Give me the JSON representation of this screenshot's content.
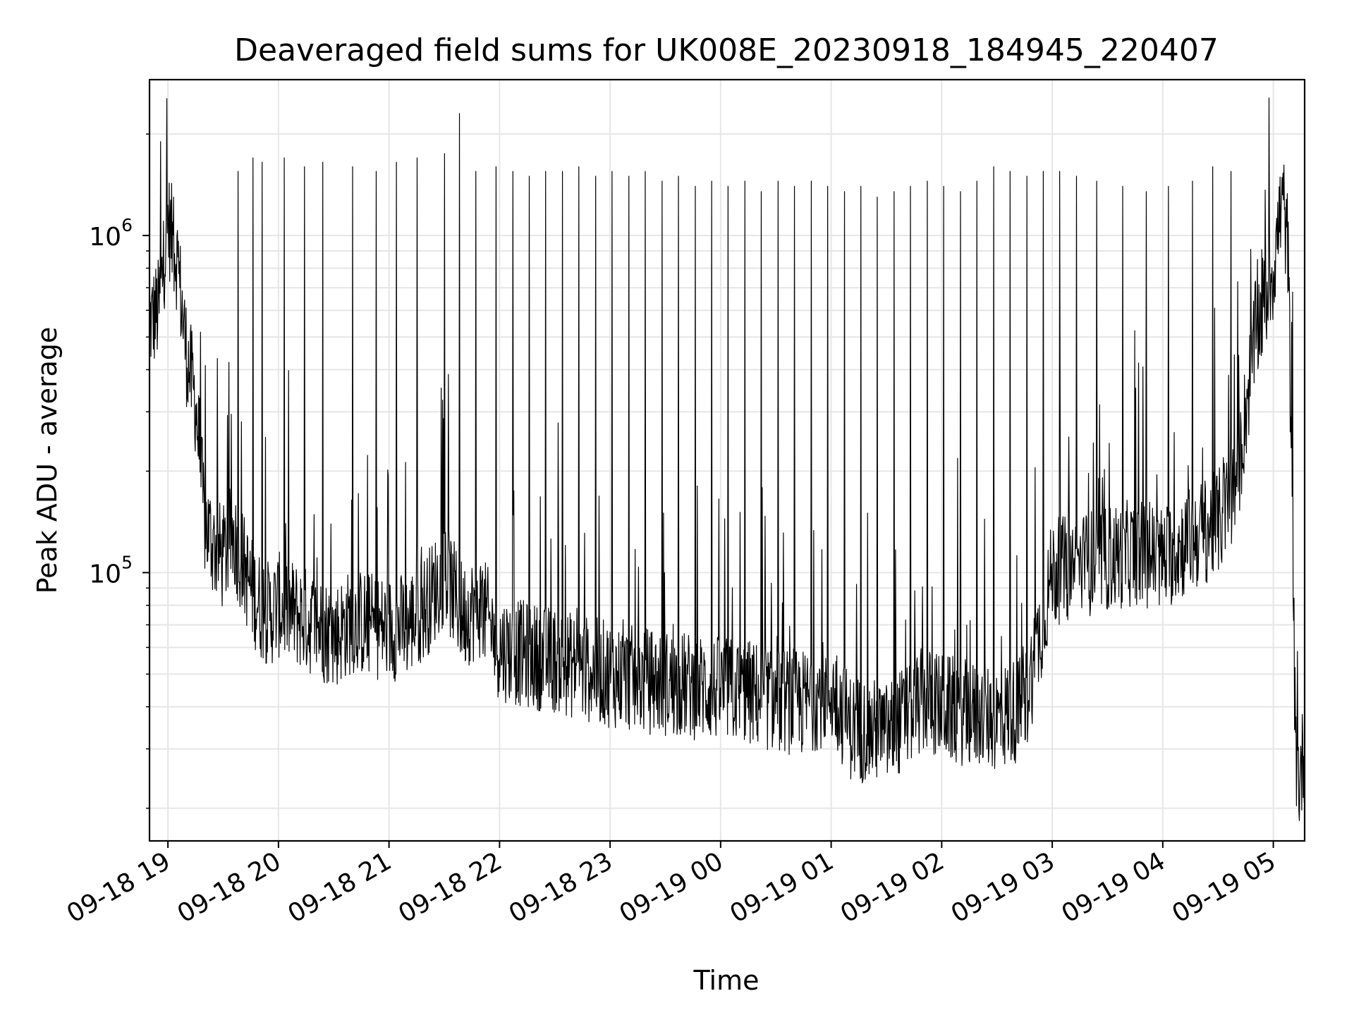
{
  "chart_data": {
    "type": "line",
    "title": "Deaveraged field sums for UK008E_20230918_184945_220407",
    "xlabel": "Time",
    "ylabel": "Peak ADU - average",
    "yscale": "log",
    "xlim": [
      "2023-09-18 18:50",
      "2023-09-19 05:17"
    ],
    "ylim": [
      16000,
      2900000
    ],
    "grid": true,
    "legend": "none",
    "line_color": "#000000",
    "grid_color": "#e6e6e6",
    "x_tick_labels": [
      "09-18 19",
      "09-18 20",
      "09-18 21",
      "09-18 22",
      "09-18 23",
      "09-19 00",
      "09-19 01",
      "09-19 02",
      "09-19 03",
      "09-19 04",
      "09-19 05"
    ],
    "y_tick_labels": [
      {
        "value": 100000,
        "base": "10",
        "exponent": "5"
      },
      {
        "value": 1000000,
        "base": "10",
        "exponent": "6"
      }
    ],
    "series": [
      {
        "x": [
          "2023-09-18 18:50",
          "2023-09-18 18:55",
          "2023-09-18 19:00",
          "2023-09-18 19:05",
          "2023-09-18 19:10",
          "2023-09-18 19:15",
          "2023-09-18 19:20",
          "2023-09-18 19:25",
          "2023-09-18 19:30",
          "2023-09-18 19:35",
          "2023-09-18 19:40",
          "2023-09-18 19:45",
          "2023-09-18 19:50",
          "2023-09-18 19:55",
          "2023-09-18 20:00",
          "2023-09-18 20:10",
          "2023-09-18 20:20",
          "2023-09-18 20:30",
          "2023-09-18 20:40",
          "2023-09-18 20:50",
          "2023-09-18 21:00",
          "2023-09-18 21:10",
          "2023-09-18 21:20",
          "2023-09-18 21:30",
          "2023-09-18 21:40",
          "2023-09-18 21:50",
          "2023-09-18 22:00",
          "2023-09-18 22:15",
          "2023-09-18 22:30",
          "2023-09-18 22:45",
          "2023-09-18 23:00",
          "2023-09-18 23:15",
          "2023-09-18 23:30",
          "2023-09-18 23:45",
          "2023-09-19 00:00",
          "2023-09-19 00:15",
          "2023-09-19 00:30",
          "2023-09-19 00:45",
          "2023-09-19 01:00",
          "2023-09-19 01:10",
          "2023-09-19 01:20",
          "2023-09-19 01:30",
          "2023-09-19 01:40",
          "2023-09-19 01:50",
          "2023-09-19 02:00",
          "2023-09-19 02:15",
          "2023-09-19 02:30",
          "2023-09-19 02:45",
          "2023-09-19 03:00",
          "2023-09-19 03:15",
          "2023-09-19 03:30",
          "2023-09-19 03:45",
          "2023-09-19 04:00",
          "2023-09-19 04:10",
          "2023-09-19 04:20",
          "2023-09-19 04:30",
          "2023-09-19 04:40",
          "2023-09-19 04:50",
          "2023-09-19 05:00",
          "2023-09-19 05:05",
          "2023-09-19 05:08",
          "2023-09-19 05:10",
          "2023-09-19 05:12",
          "2023-09-19 05:14",
          "2023-09-19 05:17"
        ],
        "y": [
          550000,
          600000,
          1100000,
          850000,
          450000,
          320000,
          140000,
          120000,
          110000,
          130000,
          110000,
          90000,
          80000,
          75000,
          80000,
          75000,
          70000,
          65000,
          72000,
          70000,
          68000,
          70000,
          80000,
          100000,
          75000,
          80000,
          60000,
          57000,
          55000,
          52000,
          50000,
          48000,
          47000,
          46000,
          45000,
          44000,
          42000,
          41000,
          45000,
          35000,
          34000,
          33000,
          37000,
          42000,
          40000,
          38000,
          37000,
          40000,
          100000,
          105000,
          110000,
          115000,
          110000,
          120000,
          130000,
          140000,
          180000,
          500000,
          800000,
          1300000,
          900000,
          200000,
          30000,
          24000,
          30000
        ],
        "spike_times": [
          "2023-09-18 18:56",
          "2023-09-18 19:03",
          "2023-09-18 19:38",
          "2023-09-18 19:46",
          "2023-09-18 19:51",
          "2023-09-18 20:03",
          "2023-09-18 20:14",
          "2023-09-18 20:24",
          "2023-09-18 20:40",
          "2023-09-18 20:53",
          "2023-09-18 21:04",
          "2023-09-18 21:15",
          "2023-09-18 21:30",
          "2023-09-18 21:38",
          "2023-09-18 21:47",
          "2023-09-18 21:58",
          "2023-09-18 22:07",
          "2023-09-18 22:16",
          "2023-09-18 22:25",
          "2023-09-18 22:34",
          "2023-09-18 22:43",
          "2023-09-18 22:52",
          "2023-09-18 23:01",
          "2023-09-18 23:10",
          "2023-09-18 23:19",
          "2023-09-18 23:28",
          "2023-09-18 23:37",
          "2023-09-18 23:46",
          "2023-09-18 23:55",
          "2023-09-19 00:04",
          "2023-09-19 00:13",
          "2023-09-19 00:22",
          "2023-09-19 00:31",
          "2023-09-19 00:40",
          "2023-09-19 00:49",
          "2023-09-19 00:58",
          "2023-09-19 01:07",
          "2023-09-19 01:16",
          "2023-09-19 01:25",
          "2023-09-19 01:34",
          "2023-09-19 01:43",
          "2023-09-19 01:52",
          "2023-09-19 02:01",
          "2023-09-19 02:10",
          "2023-09-19 02:19",
          "2023-09-19 02:28",
          "2023-09-19 02:37",
          "2023-09-19 02:46",
          "2023-09-19 02:55",
          "2023-09-19 03:04",
          "2023-09-19 03:13",
          "2023-09-19 03:24",
          "2023-09-19 03:38",
          "2023-09-19 03:51",
          "2023-09-19 04:03",
          "2023-09-19 04:16",
          "2023-09-19 04:27",
          "2023-09-19 04:37"
        ],
        "spike_peaks": [
          1900000,
          1300000,
          1550000,
          1700000,
          1650000,
          1700000,
          1600000,
          1650000,
          1600000,
          1550000,
          1650000,
          1700000,
          1750000,
          2300000,
          1550000,
          1600000,
          1550000,
          1500000,
          1550000,
          1550000,
          1600000,
          1500000,
          1550000,
          1500000,
          1550000,
          1450000,
          1500000,
          1400000,
          1450000,
          1400000,
          1450000,
          1350000,
          1450000,
          1400000,
          1450000,
          1400000,
          1350000,
          1400000,
          1300000,
          1350000,
          1400000,
          1450000,
          1400000,
          1350000,
          1450000,
          1600000,
          1550000,
          1500000,
          1550000,
          1550000,
          1500000,
          1450000,
          1400000,
          1350000,
          1400000,
          1450000,
          1600000,
          1550000
        ]
      }
    ]
  }
}
